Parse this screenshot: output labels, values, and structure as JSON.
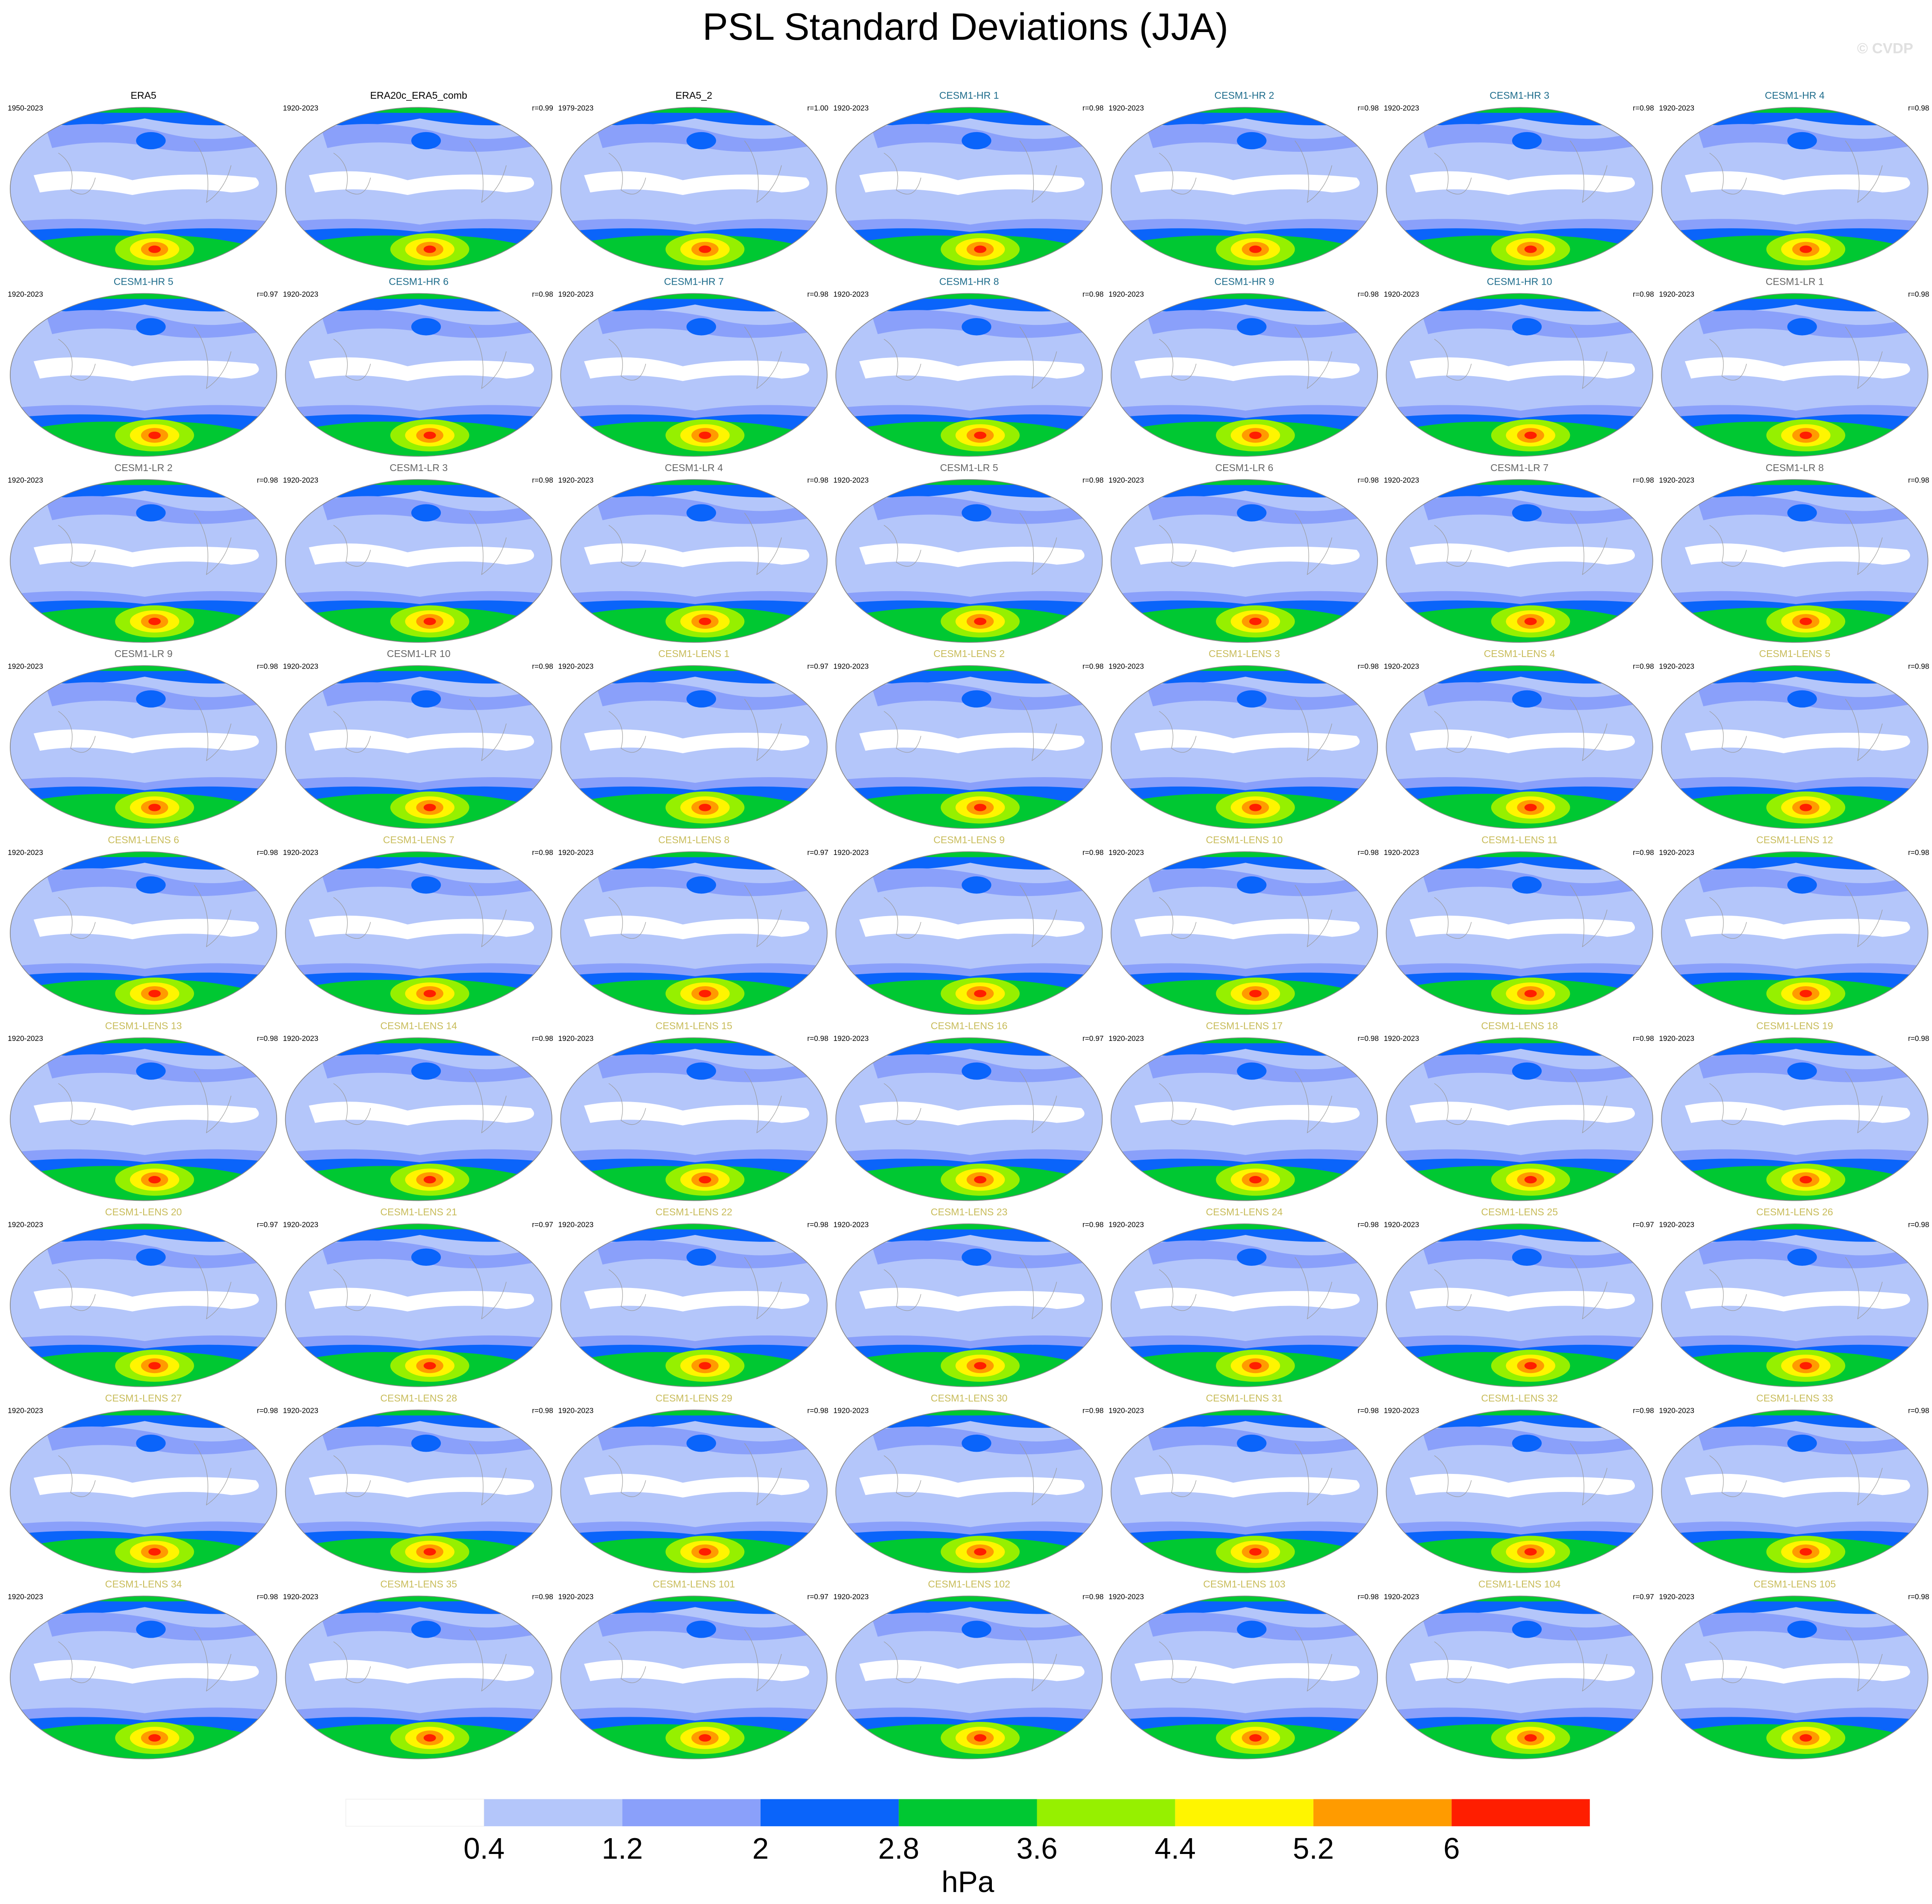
{
  "title": "PSL Standard Deviations (JJA)",
  "watermark": "© CVDP",
  "panels": [
    {
      "name": "ERA5",
      "period": "1950-2023",
      "group": "obs"
    },
    {
      "name": "ERA20c_ERA5_comb",
      "period": "1920-2023",
      "r": "r=0.99",
      "group": "obs"
    },
    {
      "name": "ERA5_2",
      "period": "1979-2023",
      "r": "r=1.00",
      "group": "obs"
    },
    {
      "name": "CESM1-HR 1",
      "period": "1920-2023",
      "r": "r=0.98",
      "group": "hr"
    },
    {
      "name": "CESM1-HR 2",
      "period": "1920-2023",
      "r": "r=0.98",
      "group": "hr"
    },
    {
      "name": "CESM1-HR 3",
      "period": "1920-2023",
      "r": "r=0.98",
      "group": "hr"
    },
    {
      "name": "CESM1-HR 4",
      "period": "1920-2023",
      "r": "r=0.98",
      "group": "hr"
    },
    {
      "name": "CESM1-HR 5",
      "period": "1920-2023",
      "r": "r=0.97",
      "group": "hr"
    },
    {
      "name": "CESM1-HR 6",
      "period": "1920-2023",
      "r": "r=0.98",
      "group": "hr"
    },
    {
      "name": "CESM1-HR 7",
      "period": "1920-2023",
      "r": "r=0.98",
      "group": "hr"
    },
    {
      "name": "CESM1-HR 8",
      "period": "1920-2023",
      "r": "r=0.98",
      "group": "hr"
    },
    {
      "name": "CESM1-HR 9",
      "period": "1920-2023",
      "r": "r=0.98",
      "group": "hr"
    },
    {
      "name": "CESM1-HR 10",
      "period": "1920-2023",
      "r": "r=0.98",
      "group": "hr"
    },
    {
      "name": "CESM1-LR 1",
      "period": "1920-2023",
      "r": "r=0.98",
      "group": "lr"
    },
    {
      "name": "CESM1-LR 2",
      "period": "1920-2023",
      "r": "r=0.98",
      "group": "lr"
    },
    {
      "name": "CESM1-LR 3",
      "period": "1920-2023",
      "r": "r=0.98",
      "group": "lr"
    },
    {
      "name": "CESM1-LR 4",
      "period": "1920-2023",
      "r": "r=0.98",
      "group": "lr"
    },
    {
      "name": "CESM1-LR 5",
      "period": "1920-2023",
      "r": "r=0.98",
      "group": "lr"
    },
    {
      "name": "CESM1-LR 6",
      "period": "1920-2023",
      "r": "r=0.98",
      "group": "lr"
    },
    {
      "name": "CESM1-LR 7",
      "period": "1920-2023",
      "r": "r=0.98",
      "group": "lr"
    },
    {
      "name": "CESM1-LR 8",
      "period": "1920-2023",
      "r": "r=0.98",
      "group": "lr"
    },
    {
      "name": "CESM1-LR 9",
      "period": "1920-2023",
      "r": "r=0.98",
      "group": "lr"
    },
    {
      "name": "CESM1-LR 10",
      "period": "1920-2023",
      "r": "r=0.98",
      "group": "lr"
    },
    {
      "name": "CESM1-LENS 1",
      "period": "1920-2023",
      "r": "r=0.97",
      "group": "lens"
    },
    {
      "name": "CESM1-LENS 2",
      "period": "1920-2023",
      "r": "r=0.98",
      "group": "lens"
    },
    {
      "name": "CESM1-LENS 3",
      "period": "1920-2023",
      "r": "r=0.98",
      "group": "lens"
    },
    {
      "name": "CESM1-LENS 4",
      "period": "1920-2023",
      "r": "r=0.98",
      "group": "lens"
    },
    {
      "name": "CESM1-LENS 5",
      "period": "1920-2023",
      "r": "r=0.98",
      "group": "lens"
    },
    {
      "name": "CESM1-LENS 6",
      "period": "1920-2023",
      "r": "r=0.98",
      "group": "lens"
    },
    {
      "name": "CESM1-LENS 7",
      "period": "1920-2023",
      "r": "r=0.98",
      "group": "lens"
    },
    {
      "name": "CESM1-LENS 8",
      "period": "1920-2023",
      "r": "r=0.97",
      "group": "lens"
    },
    {
      "name": "CESM1-LENS 9",
      "period": "1920-2023",
      "r": "r=0.98",
      "group": "lens"
    },
    {
      "name": "CESM1-LENS 10",
      "period": "1920-2023",
      "r": "r=0.98",
      "group": "lens"
    },
    {
      "name": "CESM1-LENS 11",
      "period": "1920-2023",
      "r": "r=0.98",
      "group": "lens"
    },
    {
      "name": "CESM1-LENS 12",
      "period": "1920-2023",
      "r": "r=0.98",
      "group": "lens"
    },
    {
      "name": "CESM1-LENS 13",
      "period": "1920-2023",
      "r": "r=0.98",
      "group": "lens"
    },
    {
      "name": "CESM1-LENS 14",
      "period": "1920-2023",
      "r": "r=0.98",
      "group": "lens"
    },
    {
      "name": "CESM1-LENS 15",
      "period": "1920-2023",
      "r": "r=0.98",
      "group": "lens"
    },
    {
      "name": "CESM1-LENS 16",
      "period": "1920-2023",
      "r": "r=0.97",
      "group": "lens"
    },
    {
      "name": "CESM1-LENS 17",
      "period": "1920-2023",
      "r": "r=0.98",
      "group": "lens"
    },
    {
      "name": "CESM1-LENS 18",
      "period": "1920-2023",
      "r": "r=0.98",
      "group": "lens"
    },
    {
      "name": "CESM1-LENS 19",
      "period": "1920-2023",
      "r": "r=0.98",
      "group": "lens"
    },
    {
      "name": "CESM1-LENS 20",
      "period": "1920-2023",
      "r": "r=0.97",
      "group": "lens"
    },
    {
      "name": "CESM1-LENS 21",
      "period": "1920-2023",
      "r": "r=0.97",
      "group": "lens"
    },
    {
      "name": "CESM1-LENS 22",
      "period": "1920-2023",
      "r": "r=0.98",
      "group": "lens"
    },
    {
      "name": "CESM1-LENS 23",
      "period": "1920-2023",
      "r": "r=0.98",
      "group": "lens"
    },
    {
      "name": "CESM1-LENS 24",
      "period": "1920-2023",
      "r": "r=0.98",
      "group": "lens"
    },
    {
      "name": "CESM1-LENS 25",
      "period": "1920-2023",
      "r": "r=0.97",
      "group": "lens"
    },
    {
      "name": "CESM1-LENS 26",
      "period": "1920-2023",
      "r": "r=0.98",
      "group": "lens"
    },
    {
      "name": "CESM1-LENS 27",
      "period": "1920-2023",
      "r": "r=0.98",
      "group": "lens"
    },
    {
      "name": "CESM1-LENS 28",
      "period": "1920-2023",
      "r": "r=0.98",
      "group": "lens"
    },
    {
      "name": "CESM1-LENS 29",
      "period": "1920-2023",
      "r": "r=0.98",
      "group": "lens"
    },
    {
      "name": "CESM1-LENS 30",
      "period": "1920-2023",
      "r": "r=0.98",
      "group": "lens"
    },
    {
      "name": "CESM1-LENS 31",
      "period": "1920-2023",
      "r": "r=0.98",
      "group": "lens"
    },
    {
      "name": "CESM1-LENS 32",
      "period": "1920-2023",
      "r": "r=0.98",
      "group": "lens"
    },
    {
      "name": "CESM1-LENS 33",
      "period": "1920-2023",
      "r": "r=0.98",
      "group": "lens"
    },
    {
      "name": "CESM1-LENS 34",
      "period": "1920-2023",
      "r": "r=0.98",
      "group": "lens"
    },
    {
      "name": "CESM1-LENS 35",
      "period": "1920-2023",
      "r": "r=0.98",
      "group": "lens"
    },
    {
      "name": "CESM1-LENS 101",
      "period": "1920-2023",
      "r": "r=0.97",
      "group": "lens"
    },
    {
      "name": "CESM1-LENS 102",
      "period": "1920-2023",
      "r": "r=0.98",
      "group": "lens"
    },
    {
      "name": "CESM1-LENS 103",
      "period": "1920-2023",
      "r": "r=0.98",
      "group": "lens"
    },
    {
      "name": "CESM1-LENS 104",
      "period": "1920-2023",
      "r": "r=0.97",
      "group": "lens"
    },
    {
      "name": "CESM1-LENS 105",
      "period": "1920-2023",
      "r": "r=0.98",
      "group": "lens"
    }
  ],
  "group_colors": {
    "obs": "#000000",
    "hr": "#1f6d8c",
    "lr": "#666666",
    "lens": "#c8bc5a"
  },
  "colorbar": {
    "colors": [
      "#ffffff",
      "#b4c6fa",
      "#8aa0fa",
      "#0a64fa",
      "#00c832",
      "#96f000",
      "#fff500",
      "#ff9b00",
      "#ff1e00"
    ],
    "labels": [
      0.4,
      1.2,
      2,
      2.8,
      3.6,
      4.4,
      5.2,
      6
    ],
    "unit": "hPa"
  }
}
